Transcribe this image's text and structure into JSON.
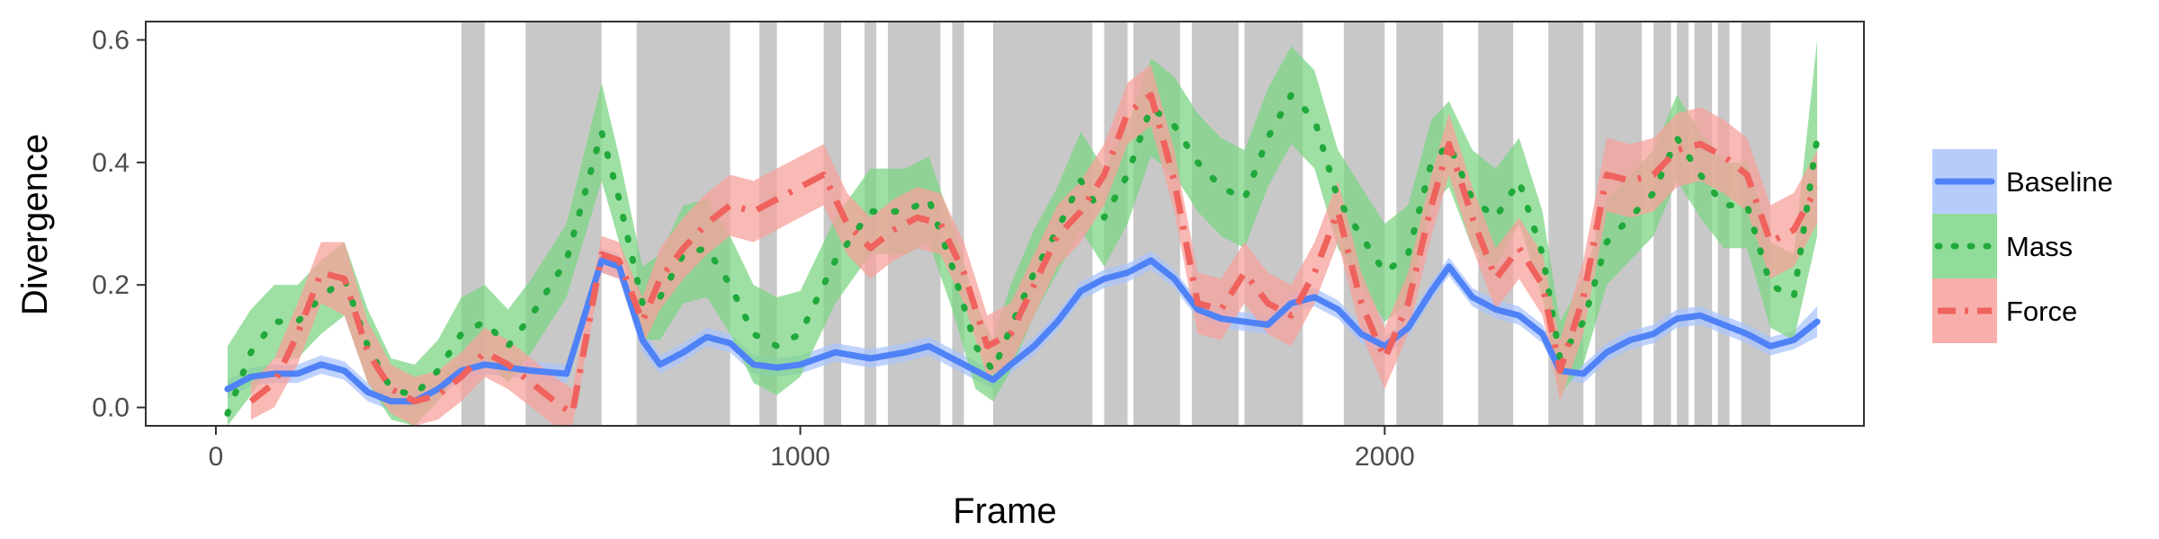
{
  "chart_data": {
    "type": "line",
    "title": "",
    "xlabel": "Frame",
    "ylabel": "Divergence",
    "xlim": [
      -120,
      2820
    ],
    "ylim": [
      -0.03,
      0.63
    ],
    "xticks": [
      0,
      1000,
      2000
    ],
    "xtick_labels": [
      "0",
      "1000",
      "2000"
    ],
    "yticks": [
      0.0,
      0.2,
      0.4,
      0.6
    ],
    "ytick_labels": [
      "0.0",
      "0.2",
      "0.4",
      "0.6"
    ],
    "grid": false,
    "legend_position": "right",
    "shaded_regions": [
      [
        420,
        460
      ],
      [
        530,
        660
      ],
      [
        720,
        880
      ],
      [
        930,
        960
      ],
      [
        1040,
        1070
      ],
      [
        1110,
        1130
      ],
      [
        1150,
        1240
      ],
      [
        1260,
        1280
      ],
      [
        1330,
        1500
      ],
      [
        1520,
        1560
      ],
      [
        1570,
        1650
      ],
      [
        1670,
        1750
      ],
      [
        1760,
        1860
      ],
      [
        1930,
        2000
      ],
      [
        2020,
        2100
      ],
      [
        2160,
        2220
      ],
      [
        2280,
        2340
      ],
      [
        2360,
        2440
      ],
      [
        2460,
        2490
      ],
      [
        2500,
        2520
      ],
      [
        2530,
        2560
      ],
      [
        2570,
        2590
      ],
      [
        2610,
        2660
      ]
    ],
    "series": [
      {
        "name": "Baseline",
        "color": "#4f82f7",
        "band_color": "#a9c4fb",
        "dash": "solid",
        "points": [
          [
            20,
            0.03,
            0.015
          ],
          [
            60,
            0.05,
            0.015
          ],
          [
            100,
            0.055,
            0.015
          ],
          [
            140,
            0.055,
            0.015
          ],
          [
            180,
            0.07,
            0.015
          ],
          [
            220,
            0.06,
            0.015
          ],
          [
            260,
            0.025,
            0.015
          ],
          [
            300,
            0.01,
            0.015
          ],
          [
            340,
            0.01,
            0.015
          ],
          [
            380,
            0.03,
            0.015
          ],
          [
            420,
            0.06,
            0.015
          ],
          [
            460,
            0.07,
            0.015
          ],
          [
            500,
            0.065,
            0.015
          ],
          [
            540,
            0.06,
            0.015
          ],
          [
            600,
            0.055,
            0.015
          ],
          [
            660,
            0.24,
            0.02
          ],
          [
            690,
            0.23,
            0.02
          ],
          [
            730,
            0.11,
            0.02
          ],
          [
            760,
            0.07,
            0.015
          ],
          [
            800,
            0.09,
            0.015
          ],
          [
            840,
            0.115,
            0.015
          ],
          [
            880,
            0.105,
            0.015
          ],
          [
            920,
            0.07,
            0.015
          ],
          [
            960,
            0.065,
            0.015
          ],
          [
            1000,
            0.07,
            0.015
          ],
          [
            1060,
            0.09,
            0.015
          ],
          [
            1120,
            0.08,
            0.015
          ],
          [
            1180,
            0.09,
            0.015
          ],
          [
            1220,
            0.1,
            0.015
          ],
          [
            1260,
            0.08,
            0.015
          ],
          [
            1300,
            0.06,
            0.015
          ],
          [
            1330,
            0.045,
            0.015
          ],
          [
            1360,
            0.07,
            0.015
          ],
          [
            1400,
            0.1,
            0.015
          ],
          [
            1440,
            0.14,
            0.015
          ],
          [
            1480,
            0.19,
            0.015
          ],
          [
            1520,
            0.21,
            0.015
          ],
          [
            1560,
            0.22,
            0.015
          ],
          [
            1600,
            0.24,
            0.015
          ],
          [
            1640,
            0.21,
            0.015
          ],
          [
            1680,
            0.16,
            0.015
          ],
          [
            1720,
            0.145,
            0.015
          ],
          [
            1760,
            0.14,
            0.015
          ],
          [
            1800,
            0.135,
            0.015
          ],
          [
            1840,
            0.17,
            0.015
          ],
          [
            1880,
            0.18,
            0.015
          ],
          [
            1920,
            0.16,
            0.015
          ],
          [
            1960,
            0.12,
            0.015
          ],
          [
            2000,
            0.1,
            0.015
          ],
          [
            2040,
            0.13,
            0.015
          ],
          [
            2080,
            0.19,
            0.015
          ],
          [
            2110,
            0.23,
            0.015
          ],
          [
            2150,
            0.18,
            0.015
          ],
          [
            2190,
            0.16,
            0.015
          ],
          [
            2230,
            0.15,
            0.015
          ],
          [
            2270,
            0.12,
            0.015
          ],
          [
            2300,
            0.06,
            0.015
          ],
          [
            2340,
            0.055,
            0.015
          ],
          [
            2380,
            0.09,
            0.015
          ],
          [
            2420,
            0.11,
            0.015
          ],
          [
            2460,
            0.12,
            0.015
          ],
          [
            2500,
            0.145,
            0.015
          ],
          [
            2540,
            0.15,
            0.015
          ],
          [
            2580,
            0.135,
            0.015
          ],
          [
            2620,
            0.12,
            0.015
          ],
          [
            2660,
            0.1,
            0.015
          ],
          [
            2700,
            0.11,
            0.015
          ],
          [
            2740,
            0.14,
            0.025
          ]
        ]
      },
      {
        "name": "Mass",
        "color": "#21a93b",
        "band_color": "#7ed686",
        "dash": "dotted",
        "points": [
          [
            20,
            -0.01,
            0.11
          ],
          [
            60,
            0.09,
            0.07
          ],
          [
            100,
            0.14,
            0.06
          ],
          [
            140,
            0.14,
            0.06
          ],
          [
            180,
            0.18,
            0.06
          ],
          [
            220,
            0.21,
            0.06
          ],
          [
            260,
            0.1,
            0.06
          ],
          [
            300,
            0.03,
            0.05
          ],
          [
            340,
            0.02,
            0.05
          ],
          [
            380,
            0.06,
            0.05
          ],
          [
            420,
            0.12,
            0.06
          ],
          [
            460,
            0.14,
            0.06
          ],
          [
            500,
            0.1,
            0.06
          ],
          [
            540,
            0.15,
            0.06
          ],
          [
            600,
            0.24,
            0.06
          ],
          [
            660,
            0.45,
            0.08
          ],
          [
            690,
            0.34,
            0.07
          ],
          [
            730,
            0.17,
            0.06
          ],
          [
            760,
            0.18,
            0.07
          ],
          [
            800,
            0.25,
            0.08
          ],
          [
            840,
            0.26,
            0.08
          ],
          [
            880,
            0.2,
            0.08
          ],
          [
            920,
            0.12,
            0.08
          ],
          [
            960,
            0.1,
            0.08
          ],
          [
            1000,
            0.12,
            0.07
          ],
          [
            1060,
            0.24,
            0.07
          ],
          [
            1120,
            0.32,
            0.07
          ],
          [
            1180,
            0.32,
            0.07
          ],
          [
            1220,
            0.34,
            0.07
          ],
          [
            1260,
            0.23,
            0.07
          ],
          [
            1300,
            0.1,
            0.07
          ],
          [
            1330,
            0.06,
            0.05
          ],
          [
            1360,
            0.13,
            0.07
          ],
          [
            1400,
            0.22,
            0.07
          ],
          [
            1440,
            0.29,
            0.07
          ],
          [
            1480,
            0.37,
            0.08
          ],
          [
            1520,
            0.31,
            0.08
          ],
          [
            1560,
            0.38,
            0.08
          ],
          [
            1600,
            0.49,
            0.08
          ],
          [
            1640,
            0.46,
            0.08
          ],
          [
            1680,
            0.4,
            0.08
          ],
          [
            1720,
            0.36,
            0.08
          ],
          [
            1760,
            0.34,
            0.08
          ],
          [
            1800,
            0.44,
            0.08
          ],
          [
            1840,
            0.51,
            0.08
          ],
          [
            1880,
            0.47,
            0.08
          ],
          [
            1920,
            0.34,
            0.08
          ],
          [
            1960,
            0.28,
            0.08
          ],
          [
            2000,
            0.22,
            0.08
          ],
          [
            2040,
            0.25,
            0.08
          ],
          [
            2080,
            0.4,
            0.07
          ],
          [
            2110,
            0.43,
            0.07
          ],
          [
            2150,
            0.34,
            0.08
          ],
          [
            2190,
            0.31,
            0.08
          ],
          [
            2230,
            0.37,
            0.07
          ],
          [
            2270,
            0.25,
            0.07
          ],
          [
            2300,
            0.08,
            0.06
          ],
          [
            2340,
            0.14,
            0.07
          ],
          [
            2380,
            0.27,
            0.07
          ],
          [
            2420,
            0.31,
            0.07
          ],
          [
            2460,
            0.35,
            0.07
          ],
          [
            2500,
            0.44,
            0.07
          ],
          [
            2540,
            0.38,
            0.07
          ],
          [
            2580,
            0.33,
            0.07
          ],
          [
            2620,
            0.33,
            0.07
          ],
          [
            2660,
            0.2,
            0.07
          ],
          [
            2700,
            0.18,
            0.07
          ],
          [
            2740,
            0.44,
            0.16
          ]
        ]
      },
      {
        "name": "Force",
        "color": "#f0625d",
        "band_color": "#f7a19c",
        "dash": "dashdot",
        "points": [
          [
            60,
            0.01,
            0.03
          ],
          [
            100,
            0.04,
            0.04
          ],
          [
            140,
            0.12,
            0.05
          ],
          [
            180,
            0.22,
            0.05
          ],
          [
            220,
            0.21,
            0.06
          ],
          [
            260,
            0.09,
            0.05
          ],
          [
            300,
            0.03,
            0.04
          ],
          [
            340,
            0.01,
            0.04
          ],
          [
            380,
            0.02,
            0.04
          ],
          [
            420,
            0.05,
            0.04
          ],
          [
            460,
            0.09,
            0.04
          ],
          [
            500,
            0.07,
            0.04
          ],
          [
            540,
            0.04,
            0.04
          ],
          [
            580,
            0.01,
            0.04
          ],
          [
            610,
            -0.01,
            0.04
          ],
          [
            660,
            0.25,
            0.03
          ],
          [
            690,
            0.24,
            0.03
          ],
          [
            730,
            0.14,
            0.04
          ],
          [
            760,
            0.21,
            0.05
          ],
          [
            800,
            0.26,
            0.05
          ],
          [
            840,
            0.3,
            0.05
          ],
          [
            880,
            0.33,
            0.05
          ],
          [
            920,
            0.32,
            0.05
          ],
          [
            960,
            0.34,
            0.05
          ],
          [
            1000,
            0.36,
            0.05
          ],
          [
            1040,
            0.38,
            0.05
          ],
          [
            1080,
            0.3,
            0.05
          ],
          [
            1120,
            0.26,
            0.05
          ],
          [
            1160,
            0.29,
            0.05
          ],
          [
            1200,
            0.31,
            0.05
          ],
          [
            1240,
            0.3,
            0.05
          ],
          [
            1280,
            0.22,
            0.05
          ],
          [
            1320,
            0.1,
            0.05
          ],
          [
            1360,
            0.12,
            0.05
          ],
          [
            1400,
            0.2,
            0.05
          ],
          [
            1440,
            0.28,
            0.05
          ],
          [
            1480,
            0.32,
            0.05
          ],
          [
            1520,
            0.38,
            0.05
          ],
          [
            1560,
            0.48,
            0.05
          ],
          [
            1600,
            0.51,
            0.05
          ],
          [
            1640,
            0.37,
            0.05
          ],
          [
            1680,
            0.17,
            0.05
          ],
          [
            1720,
            0.16,
            0.05
          ],
          [
            1760,
            0.22,
            0.05
          ],
          [
            1800,
            0.17,
            0.05
          ],
          [
            1840,
            0.15,
            0.05
          ],
          [
            1880,
            0.22,
            0.05
          ],
          [
            1920,
            0.32,
            0.05
          ],
          [
            1960,
            0.17,
            0.05
          ],
          [
            2000,
            0.08,
            0.05
          ],
          [
            2040,
            0.17,
            0.05
          ],
          [
            2080,
            0.33,
            0.05
          ],
          [
            2110,
            0.43,
            0.05
          ],
          [
            2150,
            0.31,
            0.05
          ],
          [
            2190,
            0.21,
            0.05
          ],
          [
            2230,
            0.26,
            0.05
          ],
          [
            2270,
            0.2,
            0.05
          ],
          [
            2300,
            0.06,
            0.05
          ],
          [
            2340,
            0.18,
            0.06
          ],
          [
            2380,
            0.38,
            0.06
          ],
          [
            2420,
            0.37,
            0.06
          ],
          [
            2460,
            0.38,
            0.06
          ],
          [
            2500,
            0.42,
            0.06
          ],
          [
            2540,
            0.43,
            0.06
          ],
          [
            2580,
            0.41,
            0.06
          ],
          [
            2620,
            0.38,
            0.06
          ],
          [
            2660,
            0.27,
            0.06
          ],
          [
            2700,
            0.29,
            0.06
          ],
          [
            2740,
            0.36,
            0.06
          ]
        ]
      }
    ]
  }
}
